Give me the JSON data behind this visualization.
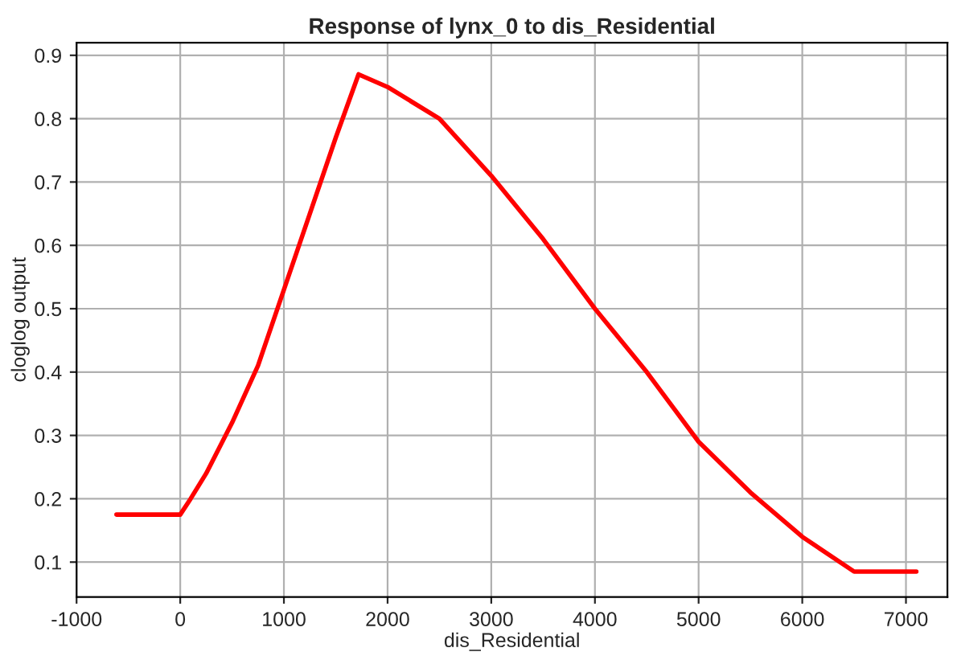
{
  "chart_data": {
    "type": "line",
    "title": "Response of lynx_0 to dis_Residential",
    "xlabel": "dis_Residential",
    "ylabel": "cloglog output",
    "x": [
      -615,
      0,
      100,
      250,
      500,
      750,
      1000,
      1250,
      1500,
      1720,
      2000,
      2500,
      3000,
      3500,
      4000,
      4500,
      5000,
      5500,
      6000,
      6500,
      7100
    ],
    "series": [
      {
        "color": "#ff0000",
        "values": [
          0.175,
          0.175,
          0.2,
          0.24,
          0.32,
          0.41,
          0.53,
          0.65,
          0.77,
          0.87,
          0.85,
          0.8,
          0.71,
          0.61,
          0.5,
          0.4,
          0.29,
          0.21,
          0.14,
          0.085,
          0.085
        ]
      }
    ],
    "xlim": [
      -1000,
      7400
    ],
    "xticks": [
      -1000,
      0,
      1000,
      2000,
      3000,
      4000,
      5000,
      6000,
      7000
    ],
    "ylim": [
      0.045,
      0.92
    ],
    "yticks": [
      0.1,
      0.2,
      0.3,
      0.4,
      0.5,
      0.6,
      0.7,
      0.8,
      0.9
    ],
    "grid": true,
    "legend": false,
    "marker": "none",
    "line_style": "solid"
  }
}
